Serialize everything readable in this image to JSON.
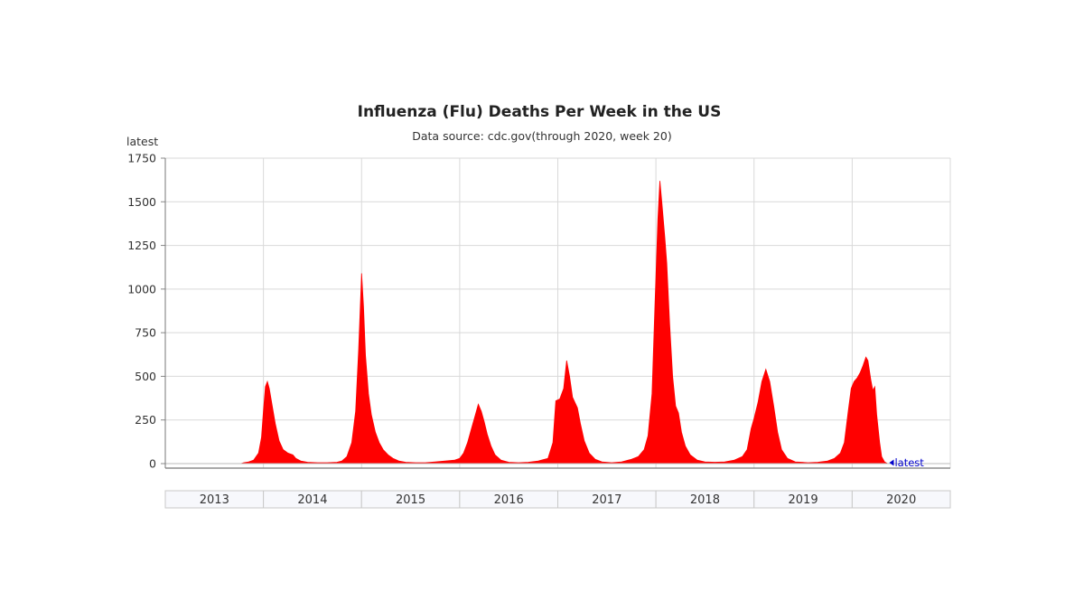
{
  "chart_data": {
    "type": "area",
    "title": "Influenza (Flu) Deaths Per Week in the US",
    "subtitle": "Data source: cdc.gov(through 2020, week 20)",
    "ylabel": "latest",
    "xlabel": "",
    "ylim": [
      0,
      1750
    ],
    "yticks": [
      0,
      250,
      500,
      750,
      1000,
      1250,
      1500,
      1750
    ],
    "years": [
      "2013",
      "2014",
      "2015",
      "2016",
      "2017",
      "2018",
      "2019",
      "2020"
    ],
    "grid": true,
    "latest_marker": "latest",
    "color": "#ff0000",
    "points": [
      [
        2013.77,
        0
      ],
      [
        2013.8,
        5
      ],
      [
        2013.85,
        10
      ],
      [
        2013.9,
        20
      ],
      [
        2013.95,
        60
      ],
      [
        2013.98,
        150
      ],
      [
        2014.0,
        300
      ],
      [
        2014.02,
        440
      ],
      [
        2014.04,
        470
      ],
      [
        2014.06,
        430
      ],
      [
        2014.09,
        330
      ],
      [
        2014.12,
        230
      ],
      [
        2014.16,
        130
      ],
      [
        2014.2,
        80
      ],
      [
        2014.25,
        60
      ],
      [
        2014.3,
        50
      ],
      [
        2014.33,
        30
      ],
      [
        2014.38,
        15
      ],
      [
        2014.45,
        8
      ],
      [
        2014.55,
        5
      ],
      [
        2014.65,
        5
      ],
      [
        2014.75,
        8
      ],
      [
        2014.8,
        15
      ],
      [
        2014.85,
        40
      ],
      [
        2014.9,
        120
      ],
      [
        2014.94,
        300
      ],
      [
        2014.97,
        650
      ],
      [
        2015.0,
        1090
      ],
      [
        2015.02,
        900
      ],
      [
        2015.04,
        620
      ],
      [
        2015.07,
        400
      ],
      [
        2015.1,
        280
      ],
      [
        2015.14,
        180
      ],
      [
        2015.18,
        120
      ],
      [
        2015.22,
        80
      ],
      [
        2015.27,
        50
      ],
      [
        2015.32,
        30
      ],
      [
        2015.38,
        15
      ],
      [
        2015.45,
        8
      ],
      [
        2015.55,
        5
      ],
      [
        2015.65,
        5
      ],
      [
        2015.75,
        10
      ],
      [
        2015.85,
        15
      ],
      [
        2015.95,
        20
      ],
      [
        2016.0,
        30
      ],
      [
        2016.04,
        60
      ],
      [
        2016.08,
        120
      ],
      [
        2016.12,
        200
      ],
      [
        2016.16,
        280
      ],
      [
        2016.19,
        340
      ],
      [
        2016.22,
        300
      ],
      [
        2016.25,
        240
      ],
      [
        2016.28,
        170
      ],
      [
        2016.32,
        100
      ],
      [
        2016.36,
        50
      ],
      [
        2016.42,
        20
      ],
      [
        2016.5,
        8
      ],
      [
        2016.6,
        5
      ],
      [
        2016.7,
        8
      ],
      [
        2016.8,
        15
      ],
      [
        2016.9,
        30
      ],
      [
        2016.95,
        120
      ],
      [
        2016.98,
        360
      ],
      [
        2017.02,
        370
      ],
      [
        2017.06,
        430
      ],
      [
        2017.09,
        590
      ],
      [
        2017.12,
        500
      ],
      [
        2017.15,
        380
      ],
      [
        2017.2,
        320
      ],
      [
        2017.23,
        230
      ],
      [
        2017.27,
        130
      ],
      [
        2017.32,
        60
      ],
      [
        2017.38,
        25
      ],
      [
        2017.45,
        10
      ],
      [
        2017.55,
        5
      ],
      [
        2017.65,
        10
      ],
      [
        2017.75,
        25
      ],
      [
        2017.82,
        40
      ],
      [
        2017.88,
        80
      ],
      [
        2017.92,
        160
      ],
      [
        2017.96,
        400
      ],
      [
        2017.99,
        900
      ],
      [
        2018.02,
        1400
      ],
      [
        2018.04,
        1620
      ],
      [
        2018.06,
        1500
      ],
      [
        2018.09,
        1300
      ],
      [
        2018.11,
        1150
      ],
      [
        2018.14,
        800
      ],
      [
        2018.17,
        500
      ],
      [
        2018.2,
        330
      ],
      [
        2018.23,
        290
      ],
      [
        2018.26,
        180
      ],
      [
        2018.3,
        100
      ],
      [
        2018.35,
        50
      ],
      [
        2018.42,
        20
      ],
      [
        2018.5,
        10
      ],
      [
        2018.6,
        8
      ],
      [
        2018.7,
        10
      ],
      [
        2018.8,
        20
      ],
      [
        2018.88,
        40
      ],
      [
        2018.93,
        80
      ],
      [
        2018.97,
        200
      ],
      [
        2019.0,
        260
      ],
      [
        2019.04,
        350
      ],
      [
        2019.08,
        470
      ],
      [
        2019.12,
        540
      ],
      [
        2019.16,
        470
      ],
      [
        2019.2,
        330
      ],
      [
        2019.24,
        180
      ],
      [
        2019.28,
        80
      ],
      [
        2019.34,
        30
      ],
      [
        2019.42,
        10
      ],
      [
        2019.55,
        5
      ],
      [
        2019.65,
        8
      ],
      [
        2019.75,
        15
      ],
      [
        2019.82,
        30
      ],
      [
        2019.88,
        60
      ],
      [
        2019.92,
        120
      ],
      [
        2019.96,
        300
      ],
      [
        2019.99,
        430
      ],
      [
        2020.02,
        470
      ],
      [
        2020.05,
        490
      ],
      [
        2020.08,
        520
      ],
      [
        2020.11,
        560
      ],
      [
        2020.14,
        610
      ],
      [
        2020.16,
        590
      ],
      [
        2020.19,
        480
      ],
      [
        2020.21,
        420
      ],
      [
        2020.23,
        440
      ],
      [
        2020.25,
        280
      ],
      [
        2020.28,
        120
      ],
      [
        2020.3,
        40
      ],
      [
        2020.33,
        10
      ],
      [
        2020.36,
        0
      ]
    ]
  }
}
